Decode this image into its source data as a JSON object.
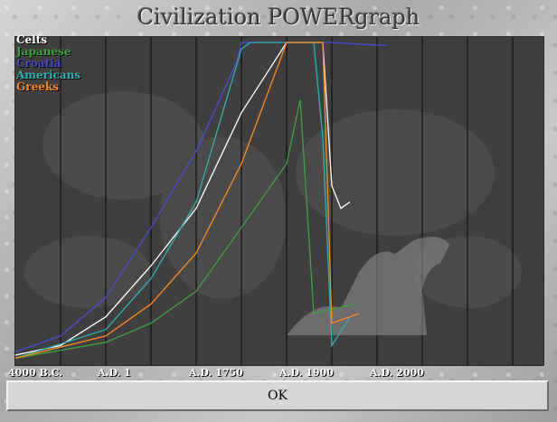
{
  "window": {
    "title": "Civilization POWERgraph"
  },
  "legend": [
    {
      "label": "Celts",
      "color": "#ffffff"
    },
    {
      "label": "Japanese",
      "color": "#3fa03f"
    },
    {
      "label": "Croatia",
      "color": "#4a4ad0"
    },
    {
      "label": "Americans",
      "color": "#2fb0b0"
    },
    {
      "label": "Greeks",
      "color": "#ff8a1a"
    }
  ],
  "x_axis_labels": [
    "4000 B.C.",
    "A.D. 1",
    "A.D. 1750",
    "A.D. 1900",
    "A.D. 2000"
  ],
  "ok_button": {
    "label": "OK"
  },
  "chart_data": {
    "type": "line",
    "xlabel": "",
    "ylabel": "",
    "categories": [
      "4000 B.C.",
      "A.D. 1",
      "A.D. 1750",
      "A.D. 1900",
      "A.D. 2000"
    ],
    "grid": true,
    "legend_placement": "top-left",
    "series": [
      {
        "name": "Celts",
        "color": "#ffffff",
        "points": [
          [
            0,
            2
          ],
          [
            0.5,
            5
          ],
          [
            1,
            14
          ],
          [
            1.5,
            30
          ],
          [
            2,
            48
          ],
          [
            2.5,
            78
          ],
          [
            3,
            100
          ],
          [
            3.4,
            100
          ],
          [
            3.5,
            55
          ],
          [
            3.6,
            48
          ],
          [
            3.7,
            50
          ]
        ]
      },
      {
        "name": "Japanese",
        "color": "#3fa03f",
        "points": [
          [
            0,
            1
          ],
          [
            1,
            6
          ],
          [
            1.5,
            12
          ],
          [
            2,
            22
          ],
          [
            2.5,
            42
          ],
          [
            3,
            62
          ],
          [
            3.15,
            82
          ],
          [
            3.3,
            15
          ],
          [
            3.6,
            17
          ],
          [
            3.75,
            18
          ]
        ]
      },
      {
        "name": "Croatia",
        "color": "#4a4ad0",
        "points": [
          [
            0,
            3
          ],
          [
            0.5,
            8
          ],
          [
            1,
            20
          ],
          [
            1.5,
            42
          ],
          [
            2,
            66
          ],
          [
            2.45,
            94
          ],
          [
            2.5,
            100
          ],
          [
            3.5,
            100
          ],
          [
            4.1,
            99
          ]
        ]
      },
      {
        "name": "Americans",
        "color": "#2fb0b0",
        "points": [
          [
            0,
            1
          ],
          [
            1,
            10
          ],
          [
            1.5,
            26
          ],
          [
            2,
            50
          ],
          [
            2.5,
            98
          ],
          [
            2.6,
            100
          ],
          [
            3.3,
            100
          ],
          [
            3.4,
            70
          ],
          [
            3.5,
            5
          ],
          [
            3.7,
            14
          ]
        ]
      },
      {
        "name": "Greeks",
        "color": "#ff8a1a",
        "points": [
          [
            0,
            1
          ],
          [
            1,
            8
          ],
          [
            1.5,
            18
          ],
          [
            2,
            34
          ],
          [
            2.5,
            62
          ],
          [
            3,
            100
          ],
          [
            3.4,
            100
          ],
          [
            3.5,
            12
          ],
          [
            3.7,
            14
          ],
          [
            3.8,
            15
          ]
        ]
      }
    ]
  }
}
